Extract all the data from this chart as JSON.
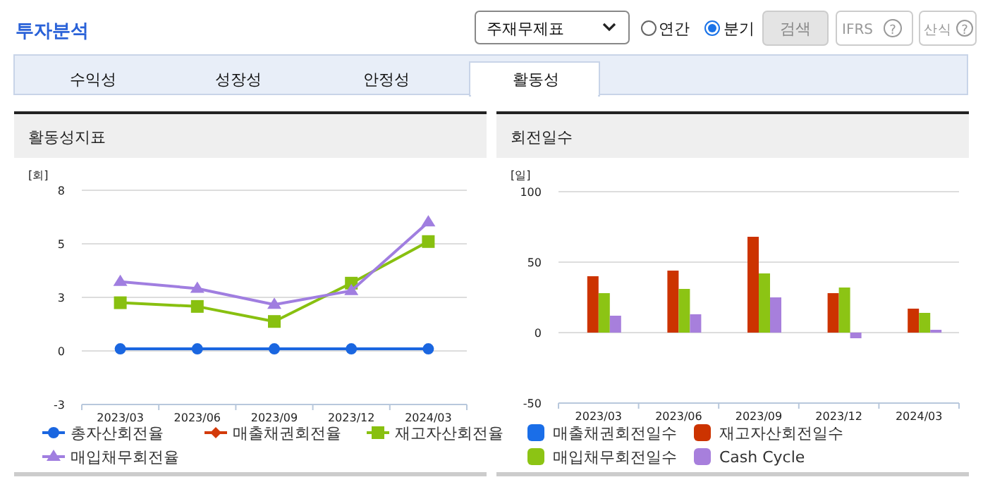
{
  "chart_data": [
    {
      "type": "other",
      "title": "투자분석",
      "annotations": [
        "주재무제표",
        "연간",
        "분기",
        "검색",
        "IFRS",
        "?",
        "산식",
        "?",
        "수익성",
        "성장성",
        "안정성",
        "활동성"
      ]
    },
    {
      "type": "line",
      "title": "활동성지표",
      "ylabel": "[회]",
      "categories": [
        "2023/03",
        "2023/06",
        "2023/09",
        "2023/12",
        "2024/03"
      ],
      "ylim": [
        -2.6,
        7.8
      ],
      "yticks": [
        {
          "value": -2.6,
          "label": "-3"
        },
        {
          "value": 0,
          "label": "0"
        },
        {
          "value": 2.6,
          "label": "3"
        },
        {
          "value": 5.2,
          "label": "5"
        },
        {
          "value": 7.8,
          "label": "8"
        }
      ],
      "grid": "y",
      "legend": "bottom",
      "series": [
        {
          "name": "총자산회전율",
          "color": "#1a66e0",
          "marker": "circle",
          "values": [
            0.1,
            0.1,
            0.1,
            0.1,
            0.1
          ]
        },
        {
          "name": "매출채권회전율",
          "color": "#d33a0a",
          "marker": "diamond",
          "values": [
            null,
            null,
            null,
            null,
            null
          ]
        },
        {
          "name": "재고자산회전율",
          "color": "#88c010",
          "marker": "square",
          "values": [
            2.34,
            2.16,
            1.43,
            3.29,
            5.31
          ]
        },
        {
          "name": "매입채무회전율",
          "color": "#a07ee0",
          "marker": "triangle",
          "values": [
            3.36,
            3.03,
            2.25,
            2.92,
            6.25
          ]
        }
      ]
    },
    {
      "type": "bar",
      "title": "회전일수",
      "ylabel": "[일]",
      "categories": [
        "2023/03",
        "2023/06",
        "2023/09",
        "2023/12",
        "2024/03"
      ],
      "ylim": [
        -50,
        100
      ],
      "yticks": [
        -50,
        0,
        50,
        100
      ],
      "grid": "y",
      "legend": "bottom",
      "series": [
        {
          "name": "매출채권회전일수",
          "color": "#1a6ee8",
          "values": [
            null,
            null,
            null,
            null,
            null
          ]
        },
        {
          "name": "재고자산회전일수",
          "color": "#cc3300",
          "values": [
            40,
            44,
            68,
            28,
            17
          ]
        },
        {
          "name": "매입채무회전일수",
          "color": "#8cc414",
          "values": [
            28,
            31,
            42,
            32,
            14
          ]
        },
        {
          "name": "Cash Cycle",
          "color": "#a77fdc",
          "values": [
            12,
            13,
            25,
            -4,
            2
          ]
        }
      ]
    }
  ]
}
